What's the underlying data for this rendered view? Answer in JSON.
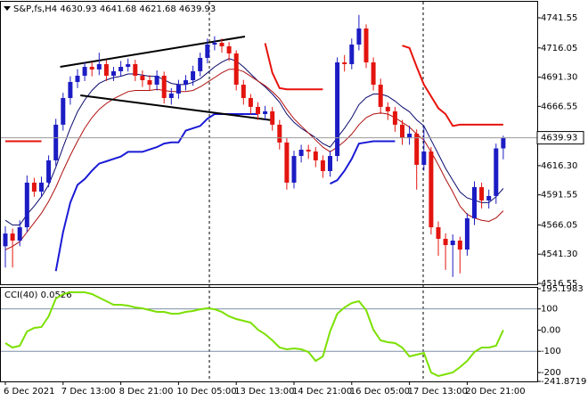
{
  "chart_data": [
    {
      "type": "candlestick",
      "title": "S&P,fs,H4  4630.93 4641.68 4621.68 4639.93",
      "categories": [
        "6 Dec 2021",
        null,
        null,
        null,
        null,
        null,
        null,
        null,
        "7 Dec 13:00",
        null,
        null,
        null,
        null,
        null,
        null,
        null,
        "8 Dec 21:00",
        null,
        null,
        null,
        null,
        null,
        null,
        null,
        "10 Dec 05:00",
        null,
        null,
        null,
        null,
        null,
        null,
        null,
        "13 Dec 13:00",
        null,
        null,
        null,
        null,
        null,
        null,
        null,
        "14 Dec 21:00",
        null,
        null,
        null,
        null,
        null,
        null,
        null,
        "16 Dec 05:00",
        null,
        null,
        null,
        null,
        null,
        null,
        null,
        "17 Dec 13:00",
        null,
        null,
        null,
        null,
        null,
        null,
        null,
        "20 Dec 21:00",
        null,
        null,
        null,
        null,
        null
      ],
      "open": [
        4548.0,
        4558.8,
        4552.8,
        4564.1,
        4601.9,
        4594.3,
        4601.9,
        4620.8,
        4651.0,
        4673.6,
        4687.2,
        4692.5,
        4700.0,
        4697.8,
        4702.3,
        4692.5,
        4696.3,
        4700.0,
        4702.3,
        4692.5,
        4688.7,
        4684.9,
        4692.5,
        4673.6,
        4677.4,
        4684.9,
        4688.7,
        4696.3,
        4707.6,
        4718.9,
        4720.4,
        4717.4,
        4711.4,
        4684.9,
        4673.6,
        4666.1,
        4660.0,
        4662.3,
        4651.0,
        4635.9,
        4601.9,
        4624.5,
        4629.8,
        4628.3,
        4620.8,
        4611.7,
        4624.5,
        4703.8,
        4702.3,
        4718.9,
        4732.5,
        4703.8,
        4684.9,
        4666.1,
        4662.3,
        4651.0,
        4639.6,
        4643.4,
        4617.0,
        4628.3,
        4564.1,
        4554.3,
        4549.0,
        4552.8,
        4545.2,
        4571.7,
        4598.1,
        4586.8,
        4590.6,
        4630.93
      ],
      "high": [
        4565.0,
        4563.0,
        4570.0,
        4608.0,
        4606.0,
        4607.0,
        4625.0,
        4656.0,
        4678.0,
        4692.0,
        4698.0,
        4704.0,
        4704.0,
        4712.0,
        4706.0,
        4700.0,
        4705.0,
        4707.0,
        4706.0,
        4697.0,
        4693.0,
        4697.0,
        4696.0,
        4682.0,
        4689.0,
        4693.0,
        4701.0,
        4712.0,
        4724.0,
        4726.0,
        4724.0,
        4721.0,
        4714.0,
        4689.0,
        4677.0,
        4670.0,
        4667.0,
        4666.0,
        4655.0,
        4640.0,
        4629.0,
        4634.0,
        4634.0,
        4632.0,
        4625.0,
        4629.0,
        4708.0,
        4710.0,
        4724.0,
        4744.0,
        4736.0,
        4708.0,
        4690.0,
        4670.0,
        4666.0,
        4655.0,
        4650.0,
        4647.0,
        4650.0,
        4632.0,
        4569.0,
        4559.0,
        4558.0,
        4556.0,
        4576.0,
        4603.0,
        4602.0,
        4596.0,
        4635.0,
        4641.68
      ],
      "low": [
        4530.0,
        4530.0,
        4548.0,
        4560.0,
        4590.0,
        4590.0,
        4598.0,
        4616.0,
        4646.0,
        4668.0,
        4682.0,
        4688.0,
        4692.0,
        4693.0,
        4688.0,
        4688.0,
        4692.0,
        4696.0,
        4688.0,
        4683.0,
        4680.0,
        4680.0,
        4669.0,
        4668.0,
        4673.0,
        4680.0,
        4684.0,
        4692.0,
        4703.0,
        4714.0,
        4712.0,
        4705.0,
        4680.0,
        4668.0,
        4660.0,
        4655.0,
        4655.0,
        4646.0,
        4630.0,
        4596.0,
        4597.0,
        4619.0,
        4622.0,
        4615.0,
        4606.0,
        4607.0,
        4620.0,
        4696.0,
        4698.0,
        4714.0,
        4699.0,
        4680.0,
        4660.0,
        4655.0,
        4645.0,
        4634.0,
        4634.0,
        4596.0,
        4612.0,
        4558.0,
        4540.0,
        4528.0,
        4522.0,
        4525.0,
        4540.0,
        4566.0,
        4580.0,
        4580.0,
        4584.0,
        4621.68
      ],
      "close": [
        4558.8,
        4552.8,
        4564.1,
        4601.9,
        4594.3,
        4601.9,
        4620.8,
        4651.0,
        4673.6,
        4687.2,
        4692.5,
        4700.0,
        4697.8,
        4702.3,
        4692.5,
        4696.3,
        4700.0,
        4702.3,
        4692.5,
        4688.7,
        4684.9,
        4692.5,
        4673.6,
        4677.4,
        4684.9,
        4688.7,
        4696.3,
        4707.6,
        4718.9,
        4720.4,
        4717.4,
        4711.4,
        4684.9,
        4673.6,
        4666.1,
        4660.0,
        4662.3,
        4651.0,
        4635.9,
        4601.9,
        4624.5,
        4629.8,
        4628.3,
        4620.8,
        4611.7,
        4624.5,
        4703.8,
        4702.3,
        4718.9,
        4732.5,
        4703.8,
        4684.9,
        4666.1,
        4662.3,
        4651.0,
        4639.6,
        4643.4,
        4617.0,
        4628.3,
        4564.1,
        4554.3,
        4549.0,
        4552.8,
        4545.2,
        4571.7,
        4598.1,
        4586.8,
        4590.6,
        4630.93,
        4639.93
      ],
      "up_color": "#1c1cc4",
      "down_color": "#e3140e",
      "overlays": [
        {
          "color": "#0a0a6e",
          "width": 1,
          "values": [
            4570,
            4566,
            4566,
            4575,
            4582,
            4590,
            4600,
            4615,
            4632,
            4648,
            4662,
            4672,
            4680,
            4686,
            4689,
            4691,
            4692,
            4694,
            4694,
            4693,
            4692,
            4692,
            4689,
            4686,
            4685,
            4685,
            4687,
            4690,
            4695,
            4700,
            4704,
            4707,
            4705,
            4700,
            4694,
            4688,
            4683,
            4677,
            4670,
            4660,
            4653,
            4648,
            4644,
            4640,
            4635,
            4632,
            4640,
            4648,
            4657,
            4668,
            4674,
            4677,
            4677,
            4675,
            4671,
            4666,
            4662,
            4655,
            4650,
            4638,
            4626,
            4614,
            4604,
            4594,
            4589,
            4587,
            4585,
            4585,
            4590,
            4597
          ]
        },
        {
          "color": "#b01010",
          "width": 1,
          "values": [
            4545,
            4548,
            4552,
            4560,
            4568,
            4576,
            4586,
            4598,
            4612,
            4625,
            4637,
            4648,
            4657,
            4664,
            4669,
            4673,
            4676,
            4679,
            4680,
            4680,
            4680,
            4681,
            4680,
            4679,
            4679,
            4679,
            4680,
            4683,
            4687,
            4691,
            4695,
            4698,
            4698,
            4696,
            4692,
            4688,
            4684,
            4679,
            4673,
            4664,
            4656,
            4650,
            4644,
            4638,
            4632,
            4628,
            4632,
            4637,
            4643,
            4651,
            4657,
            4660,
            4661,
            4660,
            4657,
            4653,
            4649,
            4643,
            4638,
            4628,
            4617,
            4605,
            4594,
            4582,
            4575,
            4572,
            4570,
            4569,
            4572,
            4578
          ]
        },
        {
          "color": "#1a1ad6",
          "width": 2,
          "values": [
            null,
            null,
            null,
            null,
            null,
            null,
            null,
            4527,
            4560,
            4585,
            4600,
            4605,
            4612,
            4618,
            4620,
            4622,
            4624,
            4628,
            4628,
            4628,
            4630,
            4632,
            4635,
            4636,
            4636,
            4646,
            4648,
            4650,
            4656,
            4660,
            4660,
            4660,
            4660,
            4660,
            4660,
            4660,
            null,
            null,
            null,
            null,
            null,
            null,
            null,
            null,
            null,
            4601,
            4604,
            4612,
            4622,
            4635,
            4636,
            4637,
            4637,
            4637,
            4637,
            null,
            null,
            null,
            null,
            null,
            null,
            null,
            null,
            null,
            null,
            null,
            null,
            null,
            null,
            null
          ]
        },
        {
          "color": "#e8120c",
          "width": 2,
          "values": [
            4637,
            4637,
            4637,
            4637,
            4637,
            4637,
            null,
            null,
            null,
            null,
            null,
            null,
            null,
            null,
            null,
            null,
            null,
            null,
            null,
            null,
            null,
            null,
            null,
            null,
            null,
            null,
            null,
            null,
            null,
            null,
            null,
            null,
            null,
            null,
            null,
            null,
            4720,
            4695,
            4682,
            4681,
            4681,
            4681,
            4681,
            4681,
            4681,
            null,
            null,
            null,
            null,
            null,
            null,
            null,
            null,
            null,
            null,
            4718,
            4716,
            4700,
            4685,
            4675,
            4665,
            4660,
            4650,
            4651,
            4651,
            4651,
            4651,
            4651,
            4651,
            4651
          ]
        }
      ],
      "trendlines": [
        {
          "x": [
            7.6,
            33.2
          ],
          "y": [
            4700.0,
            4725.7
          ]
        },
        {
          "x": [
            10.4,
            37.0
          ],
          "y": [
            4675.9,
            4654.7
          ]
        }
      ],
      "ylim": [
        4515.05,
        4755.14
      ],
      "yticks": [
        4516.55,
        {
          "value": 4541.3,
          "label": "4541.30"
        },
        4566.05,
        4591.55,
        {
          "value": 4616.3,
          "label": "4616.30"
        },
        4666.55,
        {
          "value": 4691.3,
          "label": "4691.30"
        },
        4716.05,
        4741.55
      ]
    },
    {
      "type": "line",
      "title": "CCI(40) 0.0526",
      "color": "#7ce000",
      "values": [
        -61.2,
        -82.2,
        -73.8,
        -6.5,
        10.3,
        14.5,
        64.9,
        149.0,
        170.0,
        178.4,
        178.4,
        178.4,
        170.0,
        153.2,
        136.4,
        119.6,
        119.6,
        115.4,
        106.9,
        102.7,
        94.3,
        85.9,
        85.9,
        77.5,
        77.5,
        85.9,
        90.1,
        98.5,
        102.7,
        98.5,
        85.9,
        64.9,
        52.3,
        43.9,
        35.5,
        1.9,
        -19.1,
        -48.6,
        -82.2,
        -90.6,
        -86.4,
        -90.6,
        -103.2,
        -145.2,
        -124.2,
        -6.5,
        77.5,
        106.9,
        128.0,
        136.4,
        94.3,
        1.9,
        -48.6,
        -57.0,
        -61.2,
        -82.2,
        -124.2,
        -115.8,
        -107.4,
        -199.8,
        -216.7,
        -208.2,
        -199.8,
        -174.6,
        -145.2,
        -103.2,
        -82.2,
        -82.2,
        -73.8,
        0.0526
      ],
      "levels": [
        100,
        -100
      ],
      "ylim": [
        -241.8719,
        195.1983
      ],
      "yticks": [
        195.1983,
        100,
        {
          "value": 0,
          "label": "0.00"
        },
        -100,
        -200,
        -241.8719
      ]
    }
  ]
}
